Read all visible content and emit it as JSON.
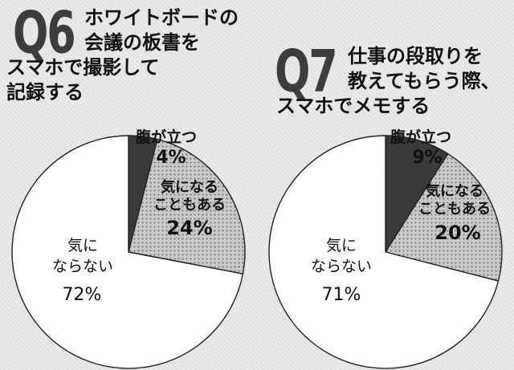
{
  "chart_data": [
    {
      "type": "pie",
      "question_number": "Q6",
      "title_lines": [
        "ホワイトボードの",
        "会議の板書を",
        "スマホで撮影して",
        "記録する"
      ],
      "slices": [
        {
          "name": "腹が立つ",
          "value": 4,
          "label": "4%",
          "color": "#3a3a3a",
          "pattern": "dark"
        },
        {
          "name": "気になることもある",
          "value": 24,
          "label": "24%",
          "color": "#c7c7c7",
          "pattern": "dots"
        },
        {
          "name": "気にならない",
          "value": 72,
          "label": "72%",
          "color": "#ffffff",
          "pattern": "none"
        }
      ]
    },
    {
      "type": "pie",
      "question_number": "Q7",
      "title_lines": [
        "仕事の段取りを",
        "教えてもらう際、",
        "スマホでメモする"
      ],
      "slices": [
        {
          "name": "腹が立つ",
          "value": 9,
          "label": "9%",
          "color": "#3a3a3a",
          "pattern": "dark"
        },
        {
          "name": "気になることもある",
          "value": 20,
          "label": "20%",
          "color": "#c7c7c7",
          "pattern": "dots"
        },
        {
          "name": "気にならない",
          "value": 71,
          "label": "71%",
          "color": "#ffffff",
          "pattern": "none"
        }
      ]
    }
  ],
  "labels": {
    "q6": {
      "angry": [
        "腹が立つ"
      ],
      "sometimes": [
        "気になる",
        "こともある"
      ],
      "notbother": [
        "気に",
        "ならない"
      ]
    },
    "q7": {
      "angry": [
        "腹が立つ"
      ],
      "sometimes": [
        "気になる",
        "こともある"
      ],
      "notbother": [
        "気に",
        "ならない"
      ]
    }
  }
}
